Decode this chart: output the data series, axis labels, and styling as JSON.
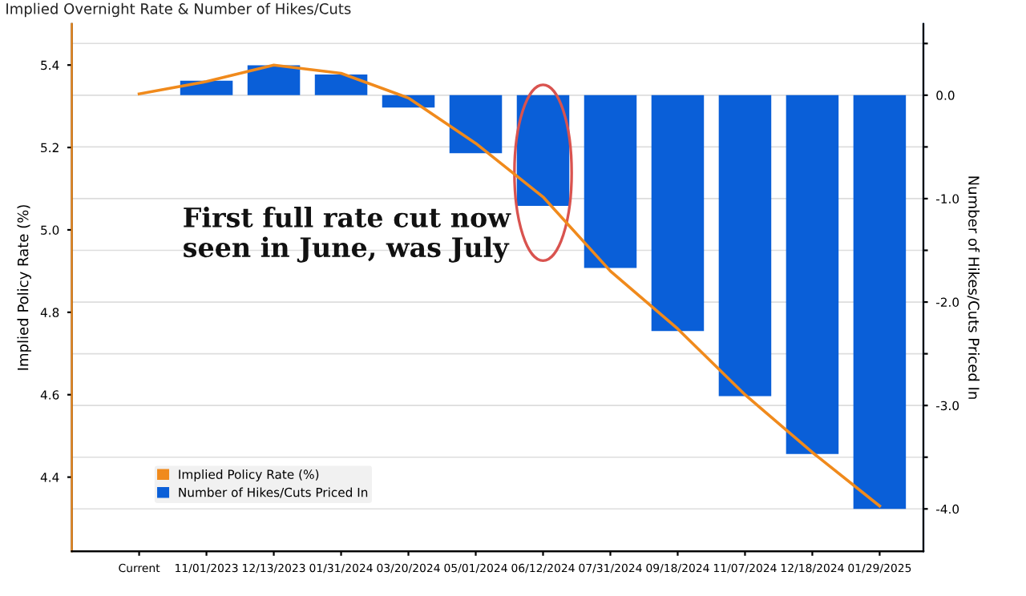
{
  "chart_data": {
    "type": "bar",
    "title": "Implied Overnight Rate & Number of Hikes/Cuts",
    "ylabel": "Implied Policy Rate (%)",
    "y2label": "Number of Hikes/Cuts Priced In",
    "categories": [
      "Current",
      "11/01/2023",
      "12/13/2023",
      "01/31/2024",
      "03/20/2024",
      "05/01/2024",
      "06/12/2024",
      "07/31/2024",
      "09/18/2024",
      "11/07/2024",
      "12/18/2024",
      "01/29/2025"
    ],
    "series": [
      {
        "name": "Implied Policy Rate (%)",
        "type": "line",
        "color": "#f08a1c",
        "values": [
          5.33,
          5.36,
          5.4,
          5.38,
          5.32,
          5.21,
          5.08,
          4.9,
          4.76,
          4.6,
          4.46,
          4.33
        ]
      },
      {
        "name": "Number of Hikes/Cuts Priced In",
        "axis": "y2",
        "color": "#0a5fd8",
        "values": [
          0.0,
          0.14,
          0.29,
          0.2,
          -0.12,
          -0.56,
          -1.07,
          -1.67,
          -2.28,
          -2.91,
          -3.47,
          -4.0
        ]
      }
    ],
    "ylim": [
      4.22,
      5.5
    ],
    "yticks": [
      4.4,
      4.6,
      4.8,
      {
        "value": 5,
        "label": "5.0"
      },
      5.2,
      5.4
    ],
    "y2lim": [
      -4.41,
      0.69
    ],
    "y2ticks": [
      {
        "value": 0.5,
        "label": null
      },
      {
        "value": 0,
        "label": "0.0"
      },
      {
        "value": -0.5,
        "label": null
      },
      {
        "value": -1,
        "label": "-1.0"
      },
      {
        "value": -1.5,
        "label": null
      },
      {
        "value": -2,
        "label": "-2.0"
      },
      {
        "value": -2.5,
        "label": null
      },
      {
        "value": -3,
        "label": "-3.0"
      },
      {
        "value": -3.5,
        "label": null
      },
      {
        "value": -4,
        "label": "-4.0"
      }
    ],
    "annotations": [
      "First full rate cut now seen in June, was July"
    ],
    "grid": true,
    "legend": "bottom left"
  }
}
